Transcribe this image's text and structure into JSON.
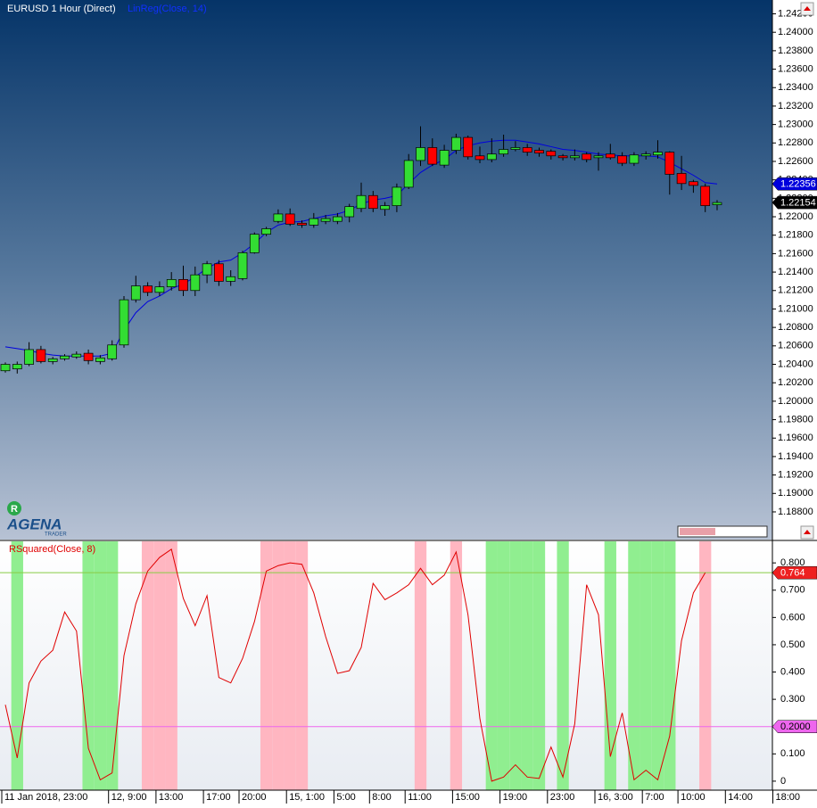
{
  "logo": {
    "badge": "R",
    "name": "AGENA",
    "tagline": "TRADER"
  },
  "chart_data": [
    {
      "type": "candlestick",
      "title": "EURUSD 1 Hour (Direct)",
      "up_color": "#33dd33",
      "down_color": "#ff0000",
      "ylim": [
        1.185,
        1.2435
      ],
      "yticks": [
        {
          "value": 1.188,
          "label": "1.18800"
        },
        {
          "value": 1.19,
          "label": "1.19000"
        },
        {
          "value": 1.192,
          "label": "1.19200"
        },
        {
          "value": 1.194,
          "label": "1.19400"
        },
        {
          "value": 1.196,
          "label": "1.19600"
        },
        {
          "value": 1.198,
          "label": "1.19800"
        },
        {
          "value": 1.2,
          "label": "1.20000"
        },
        {
          "value": 1.202,
          "label": "1.20200"
        },
        {
          "value": 1.204,
          "label": "1.20400"
        },
        {
          "value": 1.206,
          "label": "1.20600"
        },
        {
          "value": 1.208,
          "label": "1.20800"
        },
        {
          "value": 1.21,
          "label": "1.21000"
        },
        {
          "value": 1.212,
          "label": "1.21200"
        },
        {
          "value": 1.214,
          "label": "1.21400"
        },
        {
          "value": 1.216,
          "label": "1.21600"
        },
        {
          "value": 1.218,
          "label": "1.21800"
        },
        {
          "value": 1.22,
          "label": "1.22000"
        },
        {
          "value": 1.222,
          "label": "1.22200"
        },
        {
          "value": 1.224,
          "label": "1.22400"
        },
        {
          "value": 1.226,
          "label": "1.22600"
        },
        {
          "value": 1.228,
          "label": "1.22800"
        },
        {
          "value": 1.23,
          "label": "1.23000"
        },
        {
          "value": 1.232,
          "label": "1.23200"
        },
        {
          "value": 1.234,
          "label": "1.23400"
        },
        {
          "value": 1.236,
          "label": "1.23600"
        },
        {
          "value": 1.238,
          "label": "1.23800"
        },
        {
          "value": 1.24,
          "label": "1.24000"
        },
        {
          "value": 1.242,
          "label": "1.24200"
        }
      ],
      "open": [
        1.2033,
        1.2035,
        1.204,
        1.2056,
        1.2043,
        1.2046,
        1.2048,
        1.2052,
        1.2043,
        1.2046,
        1.2061,
        1.211,
        1.2125,
        1.2118,
        1.2124,
        1.2132,
        1.212,
        1.2137,
        1.2149,
        1.213,
        1.2133,
        1.2161,
        1.2181,
        1.2195,
        1.2203,
        1.2193,
        1.2191,
        1.2195,
        1.2195,
        1.22,
        1.2209,
        1.2223,
        1.2208,
        1.2212,
        1.2232,
        1.2261,
        1.2275,
        1.2256,
        1.2272,
        1.2286,
        1.2266,
        1.2262,
        1.2268,
        1.2273,
        1.2275,
        1.2272,
        1.2271,
        1.2266,
        1.2264,
        1.2268,
        1.2264,
        1.2268,
        1.2266,
        1.2258,
        1.2266,
        1.2267,
        1.227,
        1.2247,
        1.2238,
        1.2233,
        1.2213,
        null,
        null,
        null,
        null,
        null
      ],
      "high": [
        1.2042,
        1.2043,
        1.2064,
        1.206,
        1.2048,
        1.2051,
        1.2054,
        1.2056,
        1.205,
        1.2066,
        1.2114,
        1.2136,
        1.2129,
        1.213,
        1.214,
        1.2147,
        1.2146,
        1.2152,
        1.2153,
        1.2142,
        1.2163,
        1.2183,
        1.2189,
        1.2208,
        1.2209,
        1.2196,
        1.2204,
        1.2202,
        1.2204,
        1.2214,
        1.2237,
        1.2228,
        1.2216,
        1.2236,
        1.2268,
        1.2298,
        1.2285,
        1.2278,
        1.229,
        1.2288,
        1.2276,
        1.2285,
        1.2289,
        1.2282,
        1.2279,
        1.2275,
        1.2273,
        1.2268,
        1.2273,
        1.227,
        1.227,
        1.2279,
        1.227,
        1.227,
        1.2271,
        1.2283,
        1.2271,
        1.2266,
        1.224,
        1.2236,
        1.2218,
        null,
        null,
        null,
        null,
        null
      ],
      "low": [
        1.2031,
        1.203,
        1.2038,
        1.2041,
        1.204,
        1.2044,
        1.2046,
        1.204,
        1.204,
        1.2044,
        1.2058,
        1.2107,
        1.2114,
        1.2114,
        1.212,
        1.2114,
        1.2114,
        1.2128,
        1.2125,
        1.2125,
        1.2131,
        1.216,
        1.2179,
        1.2193,
        1.219,
        1.2188,
        1.2188,
        1.2192,
        1.2192,
        1.2194,
        1.2205,
        1.2205,
        1.2201,
        1.2205,
        1.223,
        1.2255,
        1.2255,
        1.2253,
        1.2268,
        1.2262,
        1.2258,
        1.2259,
        1.2265,
        1.2271,
        1.2266,
        1.2265,
        1.2262,
        1.2261,
        1.2261,
        1.2259,
        1.225,
        1.2262,
        1.2255,
        1.2255,
        1.2262,
        1.2263,
        1.2224,
        1.2229,
        1.2226,
        1.2205,
        1.2207,
        null,
        null,
        null,
        null,
        null
      ],
      "close": [
        1.204,
        1.204,
        1.2056,
        1.2043,
        1.2046,
        1.2049,
        1.2051,
        1.2044,
        1.2047,
        1.2061,
        1.211,
        1.2125,
        1.2118,
        1.2124,
        1.2132,
        1.212,
        1.2137,
        1.2149,
        1.213,
        1.2135,
        1.2161,
        1.2181,
        1.2187,
        1.2203,
        1.2192,
        1.2191,
        1.2198,
        1.2198,
        1.22,
        1.2211,
        1.2223,
        1.2209,
        1.2212,
        1.2232,
        1.2261,
        1.2275,
        1.2257,
        1.2272,
        1.2286,
        1.2265,
        1.2262,
        1.2268,
        1.2273,
        1.2275,
        1.227,
        1.2269,
        1.2266,
        1.2264,
        1.2266,
        1.2262,
        1.2266,
        1.2264,
        1.2258,
        1.2267,
        1.2268,
        1.227,
        1.2246,
        1.2236,
        1.2234,
        1.2212,
        1.22154,
        null,
        null,
        null,
        null,
        null
      ],
      "series": [
        {
          "name": "LinReg(Close, 14)",
          "color": "#0000dd",
          "values": [
            1.2059,
            1.2057,
            1.2055,
            1.2052,
            1.205,
            1.2049,
            1.2049,
            1.2049,
            1.2049,
            1.2052,
            1.2077,
            1.2096,
            1.2108,
            1.2114,
            1.2122,
            1.2127,
            1.2135,
            1.2144,
            1.2151,
            1.2153,
            1.2161,
            1.2171,
            1.2183,
            1.2191,
            1.2194,
            1.2195,
            1.2198,
            1.2201,
            1.2203,
            1.2207,
            1.2214,
            1.2218,
            1.222,
            1.2223,
            1.2236,
            1.2248,
            1.2256,
            1.2262,
            1.2272,
            1.2277,
            1.228,
            1.2282,
            1.2283,
            1.2283,
            1.2281,
            1.2279,
            1.2276,
            1.2273,
            1.2272,
            1.227,
            1.2268,
            1.2267,
            1.2266,
            1.2266,
            1.2266,
            1.2265,
            1.2259,
            1.2252,
            1.2245,
            1.2237,
            1.22356,
            null,
            null,
            null,
            null,
            null
          ]
        }
      ]
    },
    {
      "type": "line",
      "title": "RSquared(Close, 8)",
      "color": "#e00000",
      "last_value_line_color": "#88cc44",
      "ylim": [
        -0.033,
        0.879
      ],
      "yticks": [
        0,
        {
          "value": 0.1,
          "label": "0.100"
        },
        {
          "value": 0.2,
          "label": "0.200"
        },
        {
          "value": 0.3,
          "label": "0.300"
        },
        {
          "value": 0.4,
          "label": "0.400"
        },
        {
          "value": 0.5,
          "label": "0.500"
        },
        {
          "value": 0.6,
          "label": "0.600"
        },
        {
          "value": 0.7,
          "label": "0.700"
        },
        {
          "value": 0.8,
          "label": "0.800"
        }
      ],
      "levels": [
        {
          "value": 0.2,
          "label": "0.2000",
          "color": "#ee66ee"
        }
      ],
      "categories": [
        "11 Jan 2018, 23:00",
        null,
        null,
        null,
        null,
        null,
        null,
        null,
        null,
        "12, 9:00",
        null,
        null,
        null,
        "13:00",
        null,
        null,
        null,
        "17:00",
        null,
        null,
        "20:00",
        null,
        null,
        null,
        "15, 1:00",
        null,
        null,
        null,
        "5:00",
        null,
        null,
        "8:00",
        null,
        null,
        "11:00",
        null,
        null,
        null,
        "15:00",
        null,
        null,
        null,
        "19:00",
        null,
        null,
        null,
        "23:00",
        null,
        null,
        null,
        "16, 3:00",
        null,
        null,
        null,
        "7:00",
        null,
        null,
        "10:00",
        null,
        null,
        null,
        "14:00",
        null,
        null,
        null,
        "18:00"
      ],
      "values": [
        0.28,
        0.085,
        0.36,
        0.44,
        0.48,
        0.62,
        0.55,
        0.12,
        0.005,
        0.03,
        0.46,
        0.65,
        0.77,
        0.82,
        0.85,
        0.67,
        0.57,
        0.68,
        0.38,
        0.36,
        0.45,
        0.585,
        0.77,
        0.79,
        0.8,
        0.795,
        0.69,
        0.53,
        0.395,
        0.405,
        0.49,
        0.725,
        0.665,
        0.69,
        0.72,
        0.78,
        0.72,
        0.755,
        0.84,
        0.61,
        0.23,
        0.0,
        0.015,
        0.06,
        0.015,
        0.01,
        0.125,
        0.015,
        0.21,
        0.72,
        0.61,
        0.09,
        0.25,
        0.005,
        0.04,
        0.005,
        0.165,
        0.515,
        0.69,
        0.764,
        null,
        null,
        null,
        null,
        null,
        null
      ],
      "band_colors": [
        null,
        "#90ee90",
        null,
        null,
        null,
        null,
        null,
        "#90ee90",
        "#90ee90",
        "#90ee90",
        null,
        null,
        "#ffb6c1",
        "#ffb6c1",
        "#ffb6c1",
        null,
        null,
        null,
        null,
        null,
        null,
        null,
        "#ffb6c1",
        "#ffb6c1",
        "#ffb6c1",
        "#ffb6c1",
        null,
        null,
        null,
        null,
        null,
        null,
        null,
        null,
        null,
        "#ffb6c1",
        null,
        null,
        "#ffb6c1",
        null,
        null,
        "#90ee90",
        "#90ee90",
        "#90ee90",
        "#90ee90",
        "#90ee90",
        null,
        "#90ee90",
        null,
        null,
        null,
        "#90ee90",
        null,
        "#90ee90",
        "#90ee90",
        "#90ee90",
        "#90ee90",
        null,
        null,
        "#ffb6c1",
        null,
        null,
        null,
        null,
        null,
        null
      ]
    }
  ]
}
